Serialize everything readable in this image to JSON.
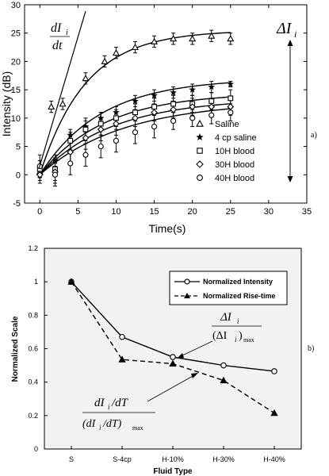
{
  "chart_data": [
    {
      "type": "scatter",
      "panel_label": "a)",
      "xlabel": "Time(s)",
      "ylabel": "Intensity (dB)",
      "xlim": [
        -2,
        35
      ],
      "ylim": [
        -5,
        30
      ],
      "xticks": [
        0,
        5,
        10,
        15,
        20,
        25,
        30,
        35
      ],
      "yticks": [
        -5,
        0,
        5,
        10,
        15,
        20,
        25,
        30
      ],
      "grid": false,
      "legend_placement": "bottom-right",
      "annotations": {
        "slope_top": "dI",
        "slope_sub": "i",
        "slope_bottom": "dt",
        "delta_sym": "ΔI",
        "delta_sub": "i"
      },
      "series": [
        {
          "name": "Saline",
          "marker": "triangle-open",
          "x": [
            0,
            1.5,
            3,
            6,
            8.5,
            10,
            12.5,
            15,
            17.5,
            20,
            22.5,
            25
          ],
          "y": [
            0.5,
            12,
            12.5,
            17,
            20,
            21.5,
            22.5,
            23.5,
            24,
            24,
            24.5,
            24
          ],
          "err": [
            1,
            1,
            1,
            1,
            1,
            1,
            1,
            1,
            1,
            1,
            1,
            1
          ],
          "fit_amp": 25.5,
          "fit_tau": 6
        },
        {
          "name": "4 cp saline",
          "marker": "star",
          "x": [
            0,
            2,
            4,
            6,
            8,
            10,
            12.5,
            15,
            17.5,
            20,
            22.5,
            25
          ],
          "y": [
            0,
            2.5,
            7,
            8.5,
            10,
            11,
            13,
            14,
            14.5,
            15,
            15.5,
            16
          ],
          "err": [
            1,
            1,
            1,
            1,
            1,
            1,
            1,
            1,
            1,
            1,
            1,
            0.5
          ],
          "fit_amp": 17,
          "fit_tau": 8
        },
        {
          "name": "10H blood",
          "marker": "square-open",
          "x": [
            0,
            2,
            4,
            6,
            8,
            10,
            12.5,
            15,
            17.5,
            20,
            22.5,
            25
          ],
          "y": [
            1,
            1,
            6,
            8,
            9,
            10,
            11,
            12,
            12.5,
            12.5,
            13,
            13.5
          ],
          "err": [
            1.5,
            2,
            1.5,
            2,
            2,
            1.5,
            1.5,
            1.5,
            1.5,
            1.5,
            1.5,
            1.5
          ],
          "fit_amp": 14.5,
          "fit_tau": 8.5
        },
        {
          "name": "30H blood",
          "marker": "diamond-open",
          "x": [
            0,
            2,
            4,
            6,
            8,
            10,
            12.5,
            15,
            17.5,
            20,
            22.5,
            25
          ],
          "y": [
            0,
            0.5,
            4,
            6.5,
            8,
            9,
            10,
            11,
            11.5,
            12,
            12,
            12
          ],
          "err": [
            1.5,
            2,
            2,
            2,
            2,
            2,
            1.5,
            1.5,
            1.5,
            1.5,
            1.5,
            1.5
          ],
          "fit_amp": 13.5,
          "fit_tau": 9.5
        },
        {
          "name": "40H blood",
          "marker": "circle-open",
          "x": [
            0,
            2,
            4,
            6,
            8,
            10,
            12.5,
            15,
            17.5,
            20,
            22.5,
            25
          ],
          "y": [
            1.5,
            0,
            2,
            3.5,
            5,
            6,
            7.5,
            8.5,
            9.5,
            10,
            10.5,
            11
          ],
          "err": [
            2,
            2,
            2,
            2,
            2,
            2,
            2,
            2,
            1.5,
            1.5,
            1.5,
            1.5
          ],
          "fit_amp": 13,
          "fit_tau": 11
        }
      ]
    },
    {
      "type": "line",
      "panel_label": "b)",
      "xlabel": "Fluid Type",
      "ylabel": "Normalized Scale",
      "categories": [
        "S",
        "S-4cp",
        "H-10%",
        "H-30%",
        "H-40%"
      ],
      "ylim": [
        0,
        1.2
      ],
      "yticks": [
        "0",
        "0.2",
        "0.4",
        "0.6",
        "0.8",
        "1",
        "1.2"
      ],
      "grid": false,
      "legend_placement": "top-right",
      "annotations": {
        "int_num": "ΔI",
        "int_num_sub": "i",
        "int_den": "(ΔI",
        "int_den_sub": "i",
        "int_den_close": ")",
        "int_den_max": "max",
        "rise_num": "dI",
        "rise_num_sub": "i",
        "rise_num_tail": "/dT",
        "rise_den": "(dI",
        "rise_den_sub": "i",
        "rise_den_tail": "/dT)",
        "rise_den_max": "max"
      },
      "series": [
        {
          "name": "Normalized Intensity",
          "style": "solid",
          "marker": "circle-open",
          "values": [
            1.0,
            0.67,
            0.55,
            0.5,
            0.465
          ]
        },
        {
          "name": "Normalized Rise-time",
          "style": "dashed",
          "marker": "triangle-filled",
          "values": [
            1.0,
            0.535,
            0.51,
            0.41,
            0.215
          ]
        }
      ]
    }
  ]
}
